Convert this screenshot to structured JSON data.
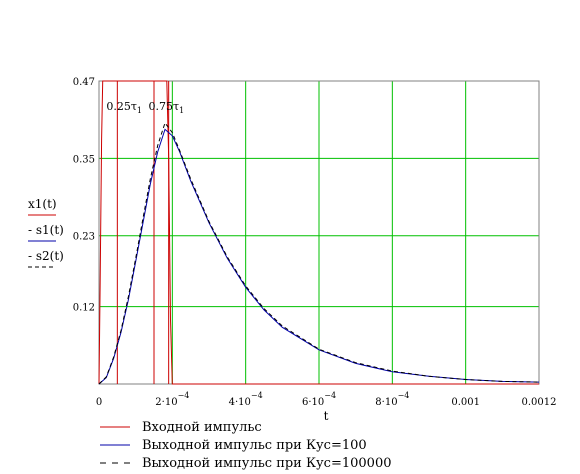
{
  "chart_data": {
    "type": "line",
    "xlabel": "t",
    "ylabel_series": [
      "x1(t)",
      "s1(t)",
      "s2(t)"
    ],
    "xlim": [
      0,
      0.0012
    ],
    "ylim": [
      0,
      0.47
    ],
    "x_ticks": [
      {
        "value": 0,
        "label": "0"
      },
      {
        "value": 0.0002,
        "label": "2·10",
        "exp": "−4"
      },
      {
        "value": 0.0004,
        "label": "4·10",
        "exp": "−4"
      },
      {
        "value": 0.0006,
        "label": "6·10",
        "exp": "−4"
      },
      {
        "value": 0.0008,
        "label": "8·10",
        "exp": "−4"
      },
      {
        "value": 0.001,
        "label": "0.001"
      },
      {
        "value": 0.0012,
        "label": "0.0012"
      }
    ],
    "y_ticks": [
      {
        "value": 0.12,
        "label": "0.12"
      },
      {
        "value": 0.23,
        "label": "0.23"
      },
      {
        "value": 0.35,
        "label": "0.35"
      },
      {
        "value": 0.47,
        "label": "0.47"
      }
    ],
    "grid": true,
    "vertical_markers": [
      {
        "x": 5e-05
      },
      {
        "x": 0.00015
      },
      {
        "x": 0.00019
      }
    ],
    "annotations": [
      {
        "text": "0.25τ",
        "sub": "1",
        "x": 2e-05,
        "y": 0.425
      },
      {
        "text": "0.75τ",
        "sub": "1",
        "x": 0.000135,
        "y": 0.425
      }
    ],
    "series": [
      {
        "name": "Входной импульс",
        "style": "solid",
        "color": "#cc0000",
        "x": [
          0,
          3e-06,
          7e-06,
          1e-05,
          1.7e-05,
          2e-05,
          2.5e-05,
          3e-05,
          0.00018,
          0.000185,
          0.00019,
          0.000195,
          0.0002,
          0.0012
        ],
        "y": [
          0,
          0.15,
          0.38,
          0.47,
          0.47,
          0.47,
          0.47,
          0.47,
          0.47,
          0.47,
          0.35,
          0.1,
          0,
          0
        ]
      },
      {
        "name": "Выходной импульс при Кус=100",
        "style": "solid",
        "color": "#0000aa",
        "x": [
          0,
          2e-05,
          4e-05,
          6e-05,
          8e-05,
          0.0001,
          0.00012,
          0.00014,
          0.00016,
          0.00018,
          0.0002,
          0.00022,
          0.00025,
          0.0003,
          0.00035,
          0.0004,
          0.00045,
          0.0005,
          0.0006,
          0.0007,
          0.0008,
          0.0009,
          0.001,
          0.0011,
          0.0012
        ],
        "y": [
          0,
          0.01,
          0.04,
          0.08,
          0.13,
          0.19,
          0.25,
          0.31,
          0.36,
          0.395,
          0.385,
          0.36,
          0.315,
          0.25,
          0.195,
          0.15,
          0.115,
          0.088,
          0.053,
          0.032,
          0.019,
          0.012,
          0.007,
          0.004,
          0.003
        ]
      },
      {
        "name": "Выходной импульс при Кус=100000",
        "style": "dashed",
        "color": "#000000",
        "x": [
          0,
          2e-05,
          4e-05,
          6e-05,
          8e-05,
          0.0001,
          0.00012,
          0.00014,
          0.00016,
          0.00018,
          0.0002,
          0.00022,
          0.00025,
          0.0003,
          0.00035,
          0.0004,
          0.00045,
          0.0005,
          0.0006,
          0.0007,
          0.0008,
          0.0009,
          0.001,
          0.0011,
          0.0012
        ],
        "y": [
          0,
          0.011,
          0.042,
          0.083,
          0.135,
          0.195,
          0.257,
          0.318,
          0.37,
          0.405,
          0.39,
          0.362,
          0.318,
          0.252,
          0.197,
          0.152,
          0.117,
          0.09,
          0.054,
          0.033,
          0.02,
          0.012,
          0.007,
          0.004,
          0.003
        ]
      }
    ]
  }
}
